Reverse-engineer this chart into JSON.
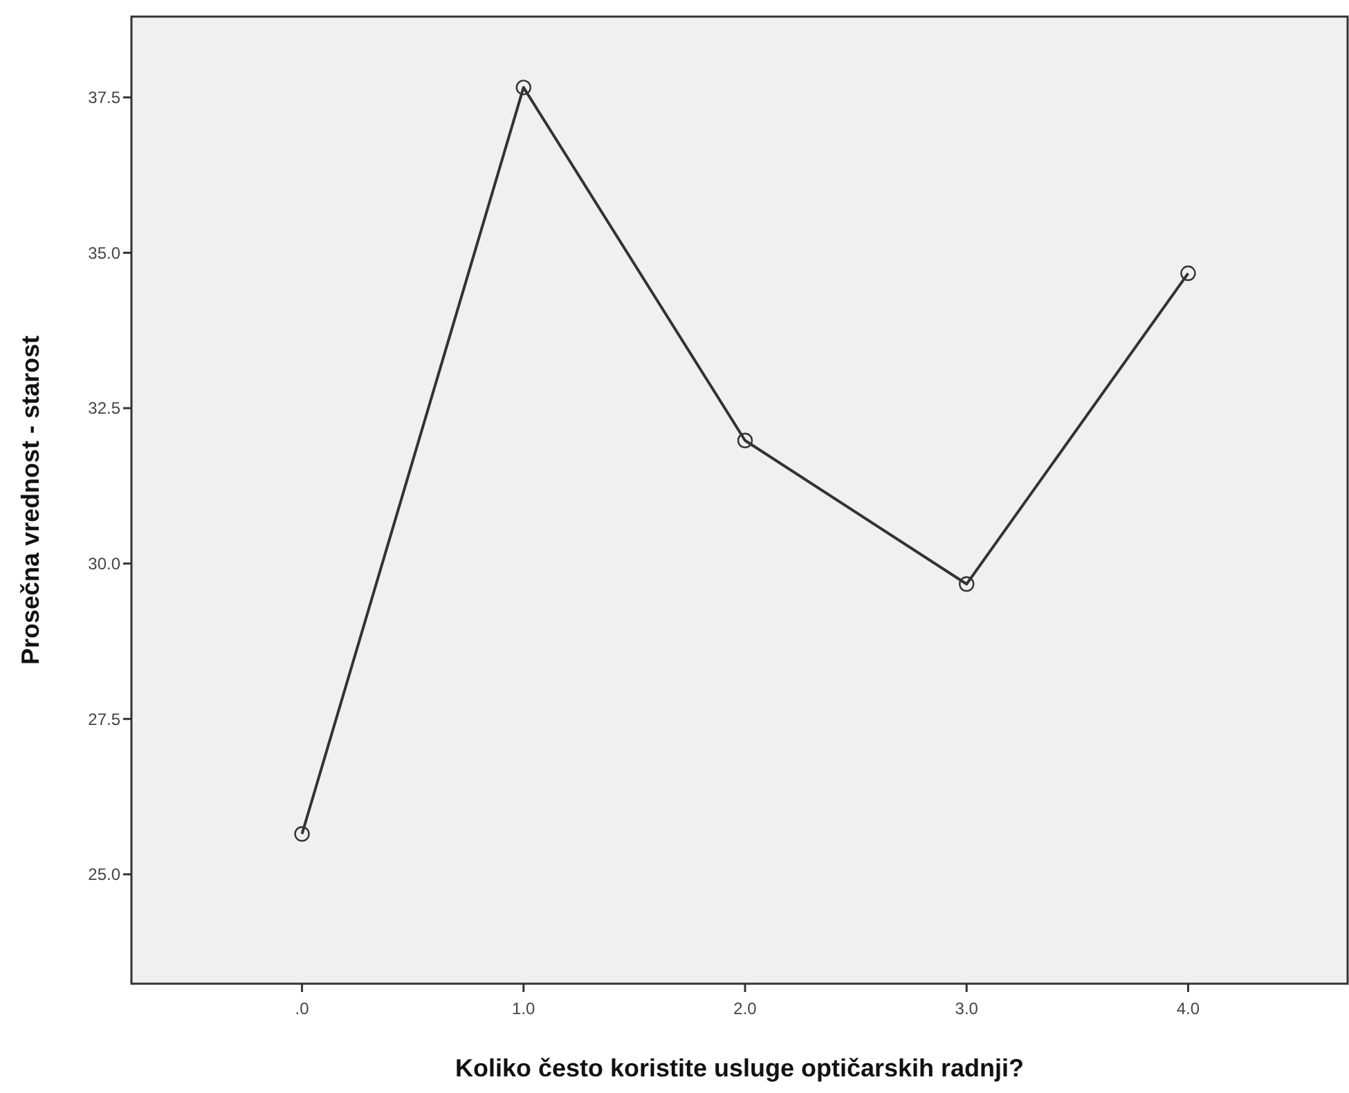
{
  "chart_data": {
    "type": "line",
    "xlabel": "Koliko često koristite usluge optičarskih radnji?",
    "ylabel": "Prosečna vrednost - starost",
    "x": [
      0,
      1,
      2,
      3,
      4
    ],
    "series": [
      {
        "color": "#333333",
        "values": [
          25.65,
          37.66,
          31.98,
          29.67,
          34.67
        ]
      }
    ],
    "xlim": [
      -0.77,
      4.72
    ],
    "xticks": [
      {
        "value": 0,
        "label": ".0"
      },
      {
        "value": 1,
        "label": "1.0"
      },
      {
        "value": 2,
        "label": "2.0"
      },
      {
        "value": 3,
        "label": "3.0"
      },
      {
        "value": 4,
        "label": "4.0"
      }
    ],
    "ylim": [
      23.24,
      38.8
    ],
    "yticks": [
      {
        "value": 25,
        "label": "25.0"
      },
      27.5,
      {
        "value": 30,
        "label": "30.0"
      },
      32.5,
      {
        "value": 35,
        "label": "35.0"
      },
      37.5
    ],
    "grid": false,
    "marker": "circle",
    "line_style": "solid"
  }
}
